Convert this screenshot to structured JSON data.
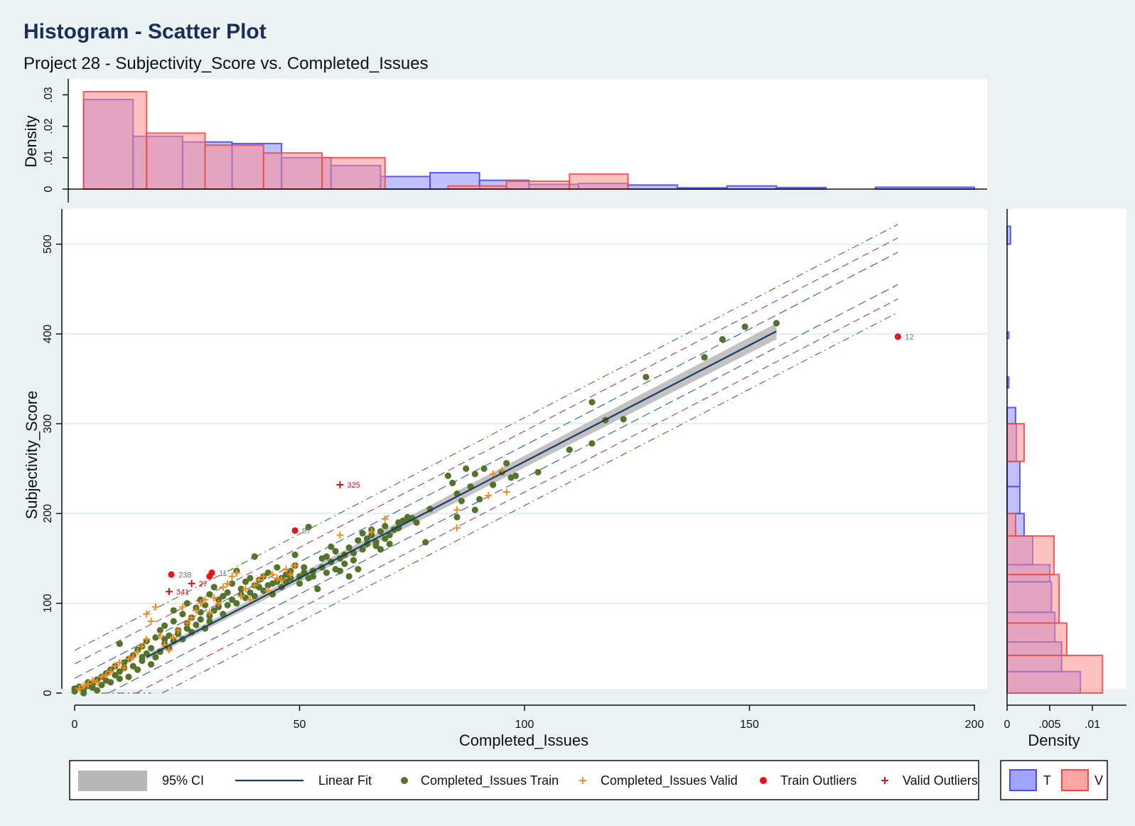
{
  "chart_data": {
    "type": "scatter",
    "title": "Histogram - Scatter Plot",
    "subtitle": "Project 28 - Subjectivity_Score vs. Completed_Issues",
    "xlabel": "Completed_Issues",
    "ylabel": "Subjectivity_Score",
    "xlim": [
      0,
      200
    ],
    "ylim": [
      0,
      520
    ],
    "x_ticks": [
      "0",
      "50",
      "100",
      "150",
      "200"
    ],
    "y_ticks": [
      "0",
      "100",
      "200",
      "300",
      "400",
      "500"
    ],
    "grid": true,
    "legend_position": "bottom",
    "fit": {
      "name": "Linear Fit",
      "x": [
        16,
        156
      ],
      "y": [
        40,
        403
      ],
      "ci_label": "95% CI",
      "ci_halfwidth_start": 3,
      "ci_halfwidth_end": 9
    },
    "interval_lines": [
      {
        "color": "#5b7a3a",
        "offsets": [
          49,
          -49
        ]
      },
      {
        "color": "#b24a5f",
        "offsets": [
          34,
          -34
        ]
      },
      {
        "color": "#3d6a99",
        "offsets": [
          18,
          -18
        ]
      }
    ],
    "series": [
      {
        "name": "Completed_Issues Train",
        "color": "#55742b",
        "marker": "circle",
        "points": [
          [
            0,
            2
          ],
          [
            0,
            5
          ],
          [
            1,
            7
          ],
          [
            2,
            0
          ],
          [
            2,
            3
          ],
          [
            3,
            8
          ],
          [
            3,
            12
          ],
          [
            4,
            6
          ],
          [
            4,
            10
          ],
          [
            5,
            15
          ],
          [
            5,
            3
          ],
          [
            6,
            18
          ],
          [
            6,
            9
          ],
          [
            7,
            22
          ],
          [
            7,
            14
          ],
          [
            8,
            12
          ],
          [
            8,
            26
          ],
          [
            9,
            20
          ],
          [
            9,
            30
          ],
          [
            10,
            16
          ],
          [
            10,
            24
          ],
          [
            10,
            55
          ],
          [
            11,
            34
          ],
          [
            11,
            28
          ],
          [
            12,
            18
          ],
          [
            12,
            38
          ],
          [
            13,
            30
          ],
          [
            13,
            42
          ],
          [
            14,
            26
          ],
          [
            14,
            48
          ],
          [
            15,
            36
          ],
          [
            15,
            52
          ],
          [
            15,
            40
          ],
          [
            16,
            44
          ],
          [
            16,
            58
          ],
          [
            17,
            32
          ],
          [
            17,
            50
          ],
          [
            18,
            62
          ],
          [
            18,
            40
          ],
          [
            19,
            46
          ],
          [
            19,
            70
          ],
          [
            20,
            55
          ],
          [
            20,
            60
          ],
          [
            20,
            75
          ],
          [
            21,
            64
          ],
          [
            21,
            50
          ],
          [
            22,
            80
          ],
          [
            22,
            58
          ],
          [
            22,
            92
          ],
          [
            23,
            70
          ],
          [
            23,
            66
          ],
          [
            24,
            88
          ],
          [
            24,
            60
          ],
          [
            25,
            78
          ],
          [
            25,
            72
          ],
          [
            25,
            100
          ],
          [
            26,
            84
          ],
          [
            26,
            68
          ],
          [
            27,
            95
          ],
          [
            27,
            76
          ],
          [
            28,
            90
          ],
          [
            28,
            82
          ],
          [
            28,
            104
          ],
          [
            29,
            72
          ],
          [
            29,
            98
          ],
          [
            30,
            86
          ],
          [
            30,
            110
          ],
          [
            30,
            80
          ],
          [
            31,
            118
          ],
          [
            31,
            92
          ],
          [
            32,
            96
          ],
          [
            32,
            104
          ],
          [
            33,
            88
          ],
          [
            33,
            108
          ],
          [
            34,
            98
          ],
          [
            34,
            112
          ],
          [
            35,
            104
          ],
          [
            35,
            122
          ],
          [
            36,
            100
          ],
          [
            36,
            136
          ],
          [
            37,
            110
          ],
          [
            37,
            116
          ],
          [
            38,
            106
          ],
          [
            38,
            124
          ],
          [
            39,
            112
          ],
          [
            39,
            128
          ],
          [
            40,
            120
          ],
          [
            40,
            108
          ],
          [
            40,
            152
          ],
          [
            41,
            118
          ],
          [
            41,
            126
          ],
          [
            42,
            114
          ],
          [
            42,
            130
          ],
          [
            43,
            120
          ],
          [
            43,
            134
          ],
          [
            44,
            110
          ],
          [
            44,
            122
          ],
          [
            45,
            124
          ],
          [
            45,
            140
          ],
          [
            46,
            128
          ],
          [
            46,
            118
          ],
          [
            47,
            132
          ],
          [
            47,
            124
          ],
          [
            48,
            136
          ],
          [
            48,
            128
          ],
          [
            49,
            154
          ],
          [
            49,
            142
          ],
          [
            50,
            130
          ],
          [
            50,
            122
          ],
          [
            51,
            134
          ],
          [
            51,
            140
          ],
          [
            52,
            185
          ],
          [
            52,
            128
          ],
          [
            53,
            130
          ],
          [
            53,
            136
          ],
          [
            54,
            116
          ],
          [
            55,
            140
          ],
          [
            55,
            150
          ],
          [
            56,
            152
          ],
          [
            56,
            134
          ],
          [
            57,
            146
          ],
          [
            57,
            163
          ],
          [
            58,
            138
          ],
          [
            58,
            158
          ],
          [
            59,
            150
          ],
          [
            59,
            136
          ],
          [
            60,
            154
          ],
          [
            60,
            144
          ],
          [
            61,
            162
          ],
          [
            61,
            130
          ],
          [
            62,
            156
          ],
          [
            62,
            148
          ],
          [
            63,
            170
          ],
          [
            63,
            138
          ],
          [
            64,
            160
          ],
          [
            64,
            178
          ],
          [
            65,
            166
          ],
          [
            65,
            172
          ],
          [
            66,
            176
          ],
          [
            66,
            182
          ],
          [
            67,
            168
          ],
          [
            67,
            164
          ],
          [
            68,
            180
          ],
          [
            68,
            160
          ],
          [
            69,
            172
          ],
          [
            69,
            186
          ],
          [
            70,
            176
          ],
          [
            70,
            166
          ],
          [
            71,
            182
          ],
          [
            72,
            190
          ],
          [
            72,
            184
          ],
          [
            73,
            192
          ],
          [
            74,
            194
          ],
          [
            74,
            196
          ],
          [
            75,
            195
          ],
          [
            76,
            190
          ],
          [
            78,
            168
          ],
          [
            79,
            205
          ],
          [
            83,
            242
          ],
          [
            84,
            234
          ],
          [
            85,
            222
          ],
          [
            85,
            196
          ],
          [
            86,
            214
          ],
          [
            87,
            250
          ],
          [
            88,
            230
          ],
          [
            89,
            204
          ],
          [
            89,
            244
          ],
          [
            90,
            216
          ],
          [
            91,
            250
          ],
          [
            93,
            232
          ],
          [
            95,
            246
          ],
          [
            96,
            256
          ],
          [
            97,
            240
          ],
          [
            98,
            242
          ],
          [
            103,
            246
          ],
          [
            110,
            271
          ],
          [
            115,
            278
          ],
          [
            115,
            324
          ],
          [
            118,
            304
          ],
          [
            122,
            305
          ],
          [
            127,
            352
          ],
          [
            140,
            374
          ],
          [
            144,
            394
          ],
          [
            149,
            408
          ],
          [
            156,
            412
          ]
        ]
      },
      {
        "name": "Completed_Issues Valid",
        "color": "#f58a1f",
        "marker": "plus",
        "points": [
          [
            1,
            5
          ],
          [
            2,
            8
          ],
          [
            3,
            10
          ],
          [
            4,
            14
          ],
          [
            5,
            12
          ],
          [
            6,
            18
          ],
          [
            7,
            20
          ],
          [
            8,
            24
          ],
          [
            9,
            30
          ],
          [
            10,
            34
          ],
          [
            11,
            28
          ],
          [
            12,
            38
          ],
          [
            13,
            40
          ],
          [
            14,
            46
          ],
          [
            15,
            52
          ],
          [
            16,
            60
          ],
          [
            16,
            88
          ],
          [
            17,
            80
          ],
          [
            18,
            96
          ],
          [
            19,
            64
          ],
          [
            20,
            54
          ],
          [
            21,
            48
          ],
          [
            22,
            62
          ],
          [
            23,
            70
          ],
          [
            24,
            96
          ],
          [
            25,
            78
          ],
          [
            26,
            84
          ],
          [
            27,
            92
          ],
          [
            28,
            100
          ],
          [
            29,
            104
          ],
          [
            30,
            90
          ],
          [
            31,
            106
          ],
          [
            32,
            100
          ],
          [
            33,
            118
          ],
          [
            34,
            122
          ],
          [
            35,
            130
          ],
          [
            36,
            134
          ],
          [
            37,
            108
          ],
          [
            38,
            116
          ],
          [
            39,
            104
          ],
          [
            40,
            120
          ],
          [
            41,
            126
          ],
          [
            42,
            130
          ],
          [
            43,
            114
          ],
          [
            44,
            132
          ],
          [
            45,
            128
          ],
          [
            46,
            126
          ],
          [
            47,
            138
          ],
          [
            48,
            132
          ],
          [
            49,
            142
          ],
          [
            59,
            176
          ],
          [
            66,
            180
          ],
          [
            69,
            194
          ],
          [
            85,
            204
          ],
          [
            85,
            184
          ],
          [
            92,
            220
          ],
          [
            93,
            244
          ],
          [
            95,
            248
          ],
          [
            96,
            224
          ]
        ]
      },
      {
        "name": "Train Outliers",
        "color": "#e8141b",
        "marker": "circle",
        "points": [
          [
            21.5,
            132,
            "238"
          ],
          [
            30,
            130,
            ""
          ],
          [
            30.5,
            134,
            "11"
          ],
          [
            49,
            181,
            "87"
          ],
          [
            183,
            397,
            "12"
          ]
        ]
      },
      {
        "name": "Valid Outliers",
        "color": "#d0101a",
        "marker": "plus",
        "points": [
          [
            59,
            232,
            "325"
          ],
          [
            26,
            122,
            "27"
          ],
          [
            21,
            113,
            "341"
          ]
        ]
      }
    ],
    "hist_top": {
      "ylabel": "Density",
      "y_ticks": [
        "0",
        ".01",
        ".02",
        ".03"
      ],
      "ylim": [
        0,
        0.031
      ],
      "T": [
        [
          2,
          13,
          0.0285
        ],
        [
          13,
          24,
          0.0168
        ],
        [
          24,
          35,
          0.015
        ],
        [
          35,
          46,
          0.0145
        ],
        [
          46,
          57,
          0.01
        ],
        [
          57,
          68,
          0.0075
        ],
        [
          68,
          79,
          0.004
        ],
        [
          79,
          90,
          0.0052
        ],
        [
          90,
          101,
          0.0028
        ],
        [
          101,
          112,
          0.0015
        ],
        [
          112,
          123,
          0.0018
        ],
        [
          123,
          134,
          0.0013
        ],
        [
          134,
          145,
          0.0004
        ],
        [
          145,
          156,
          0.001
        ],
        [
          156,
          167,
          0.0005
        ],
        [
          178,
          200,
          0.0006
        ]
      ],
      "V": [
        [
          2,
          16,
          0.031
        ],
        [
          16,
          29,
          0.0178
        ],
        [
          29,
          42,
          0.014
        ],
        [
          42,
          55,
          0.0115
        ],
        [
          55,
          69,
          0.01
        ],
        [
          83,
          96,
          0.001
        ],
        [
          96,
          110,
          0.0025
        ],
        [
          110,
          123,
          0.0048
        ]
      ]
    },
    "hist_right": {
      "xlabel": "Density",
      "x_ticks": [
        "0",
        ".005",
        ".01"
      ],
      "xlim": [
        0,
        0.0125
      ],
      "T": [
        [
          0,
          24,
          0.0086
        ],
        [
          24,
          57,
          0.0064
        ],
        [
          57,
          90,
          0.0056
        ],
        [
          90,
          124,
          0.0052
        ],
        [
          124,
          143,
          0.005
        ],
        [
          143,
          175,
          0.003
        ],
        [
          175,
          200,
          0.002
        ],
        [
          200,
          230,
          0.0015
        ],
        [
          230,
          258,
          0.0015
        ],
        [
          258,
          300,
          0.0011
        ],
        [
          300,
          318,
          0.001
        ],
        [
          340,
          352,
          0.0002
        ],
        [
          395,
          402,
          0.0002
        ],
        [
          500,
          520,
          0.0004
        ]
      ],
      "V": [
        [
          0,
          42,
          0.0112
        ],
        [
          42,
          78,
          0.007
        ],
        [
          78,
          132,
          0.0061
        ],
        [
          132,
          175,
          0.0055
        ],
        [
          175,
          200,
          0.001
        ],
        [
          258,
          300,
          0.002
        ]
      ]
    },
    "legend": {
      "items": [
        "95% CI",
        "Linear Fit",
        "Completed_Issues Train",
        "Completed_Issues Valid",
        "Train Outliers",
        "Valid Outliers"
      ],
      "hist_items": [
        "T",
        "V"
      ]
    },
    "colors": {
      "T_fill": "#8c8cff",
      "T_edge": "#4c4cf0",
      "V_fill": "#ff8c8c",
      "V_edge": "#f04c4c",
      "fit_line": "#1c3a63",
      "ci": "#b7b7b7",
      "outlier_label": "#5c7a7a"
    }
  }
}
